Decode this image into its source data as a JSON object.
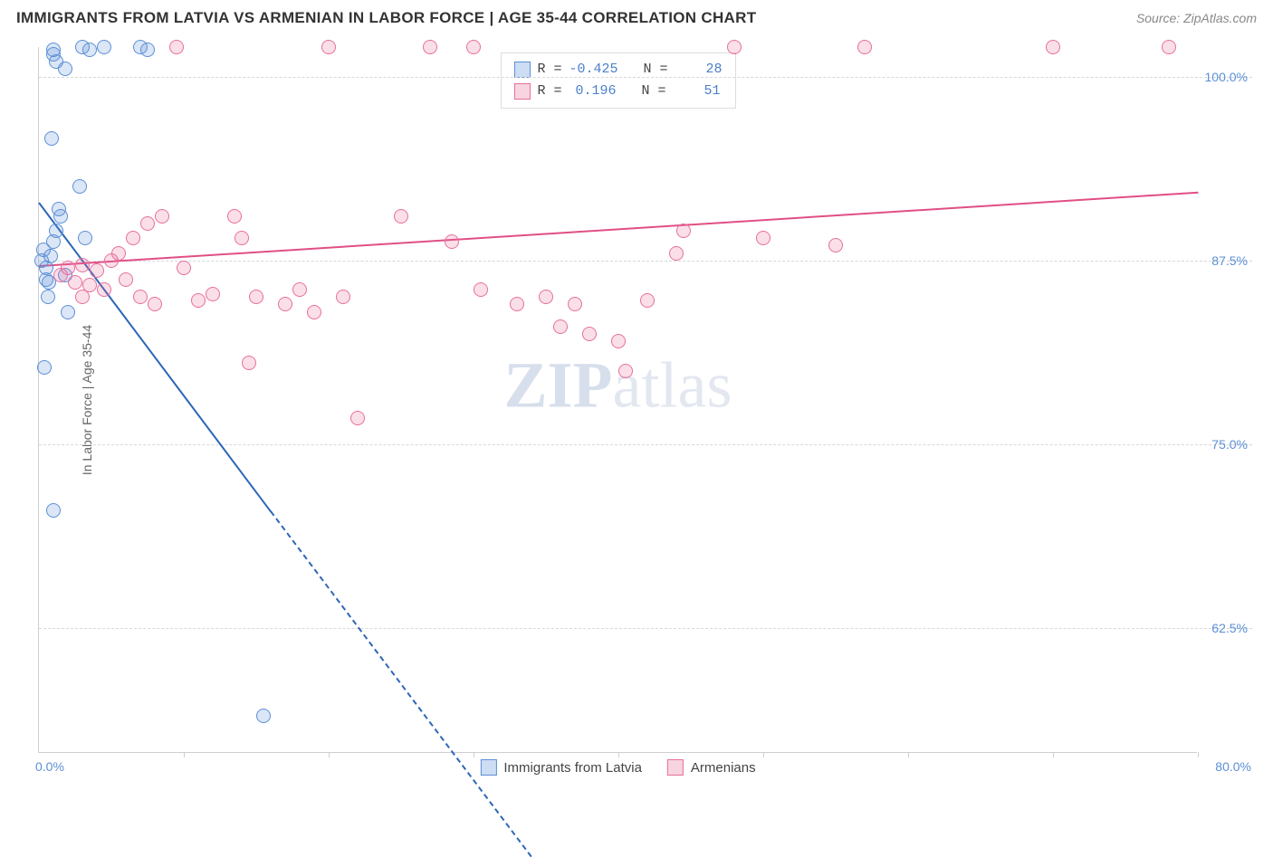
{
  "title": "IMMIGRANTS FROM LATVIA VS ARMENIAN IN LABOR FORCE | AGE 35-44 CORRELATION CHART",
  "source": "Source: ZipAtlas.com",
  "watermark": {
    "bold": "ZIP",
    "light": "atlas"
  },
  "chart": {
    "type": "scatter",
    "ylabel": "In Labor Force | Age 35-44",
    "xlim": [
      0,
      80
    ],
    "ylim": [
      54,
      102
    ],
    "ytick_values": [
      62.5,
      75.0,
      87.5,
      100.0
    ],
    "ytick_labels": [
      "62.5%",
      "75.0%",
      "87.5%",
      "100.0%"
    ],
    "xtick_values": [
      10,
      20,
      30,
      40,
      50,
      60,
      70,
      80
    ],
    "xlim_labels": {
      "min": "0.0%",
      "max": "80.0%"
    },
    "background_color": "#ffffff",
    "grid_color": "#d8d8d8",
    "axis_color": "#cfcfcf",
    "marker_radius": 8,
    "marker_stroke_width": 1.2,
    "marker_fill_opacity": 0.22,
    "series": [
      {
        "name": "Immigrants from Latvia",
        "color_stroke": "#5b8fd6",
        "color_fill": "rgba(91,143,214,0.22)",
        "R": -0.425,
        "N": 28,
        "trend": {
          "x1": 0,
          "y1": 91.5,
          "x2": 16,
          "y2": 70.5,
          "dash_extend_x": 34,
          "dash_extend_y": 47,
          "color": "#2d66b8",
          "width": 2
        },
        "points": [
          [
            0.3,
            88.2
          ],
          [
            0.5,
            87.0
          ],
          [
            0.7,
            86.0
          ],
          [
            0.8,
            87.8
          ],
          [
            1.0,
            88.8
          ],
          [
            1.2,
            89.5
          ],
          [
            1.5,
            90.5
          ],
          [
            0.6,
            85.0
          ],
          [
            1.8,
            86.5
          ],
          [
            2.0,
            84.0
          ],
          [
            0.4,
            80.2
          ],
          [
            1.0,
            70.5
          ],
          [
            3.0,
            102.0
          ],
          [
            3.5,
            101.8
          ],
          [
            4.5,
            102.0
          ],
          [
            7.0,
            102.0
          ],
          [
            7.5,
            101.8
          ],
          [
            1.2,
            101.0
          ],
          [
            1.0,
            101.8
          ],
          [
            1.8,
            100.5
          ],
          [
            0.9,
            95.8
          ],
          [
            2.8,
            92.5
          ],
          [
            1.4,
            91.0
          ],
          [
            3.2,
            89.0
          ],
          [
            0.5,
            86.2
          ],
          [
            0.2,
            87.5
          ],
          [
            1.0,
            101.5
          ],
          [
            15.5,
            56.5
          ]
        ]
      },
      {
        "name": "Armenians",
        "color_stroke": "#e76f9b",
        "color_fill": "rgba(231,111,155,0.22)",
        "R": 0.196,
        "N": 51,
        "trend": {
          "x1": 0,
          "y1": 87.2,
          "x2": 80,
          "y2": 92.2,
          "color": "#e04f85",
          "width": 2
        },
        "points": [
          [
            1.5,
            86.5
          ],
          [
            2.0,
            87.0
          ],
          [
            2.5,
            86.0
          ],
          [
            3.0,
            87.2
          ],
          [
            3.5,
            85.8
          ],
          [
            4.0,
            86.8
          ],
          [
            4.5,
            85.5
          ],
          [
            5.0,
            87.5
          ],
          [
            5.5,
            88.0
          ],
          [
            6.0,
            86.2
          ],
          [
            6.5,
            89.0
          ],
          [
            7.0,
            85.0
          ],
          [
            7.5,
            90.0
          ],
          [
            8.0,
            84.5
          ],
          [
            8.5,
            90.5
          ],
          [
            3.0,
            85.0
          ],
          [
            9.5,
            102.0
          ],
          [
            10.0,
            87.0
          ],
          [
            11.0,
            84.8
          ],
          [
            12.0,
            85.2
          ],
          [
            13.5,
            90.5
          ],
          [
            14.0,
            89.0
          ],
          [
            15.0,
            85.0
          ],
          [
            17.0,
            84.5
          ],
          [
            18.0,
            85.5
          ],
          [
            19.0,
            84.0
          ],
          [
            20.0,
            102.0
          ],
          [
            21.0,
            85.0
          ],
          [
            22.0,
            76.8
          ],
          [
            14.5,
            80.5
          ],
          [
            25.0,
            90.5
          ],
          [
            27.0,
            102.0
          ],
          [
            28.5,
            88.8
          ],
          [
            30.0,
            102.0
          ],
          [
            30.5,
            85.5
          ],
          [
            33.0,
            84.5
          ],
          [
            35.0,
            85.0
          ],
          [
            36.0,
            83.0
          ],
          [
            37.0,
            84.5
          ],
          [
            38.0,
            82.5
          ],
          [
            40.0,
            82.0
          ],
          [
            40.5,
            80.0
          ],
          [
            42.0,
            84.8
          ],
          [
            44.0,
            88.0
          ],
          [
            44.5,
            89.5
          ],
          [
            48.0,
            102.0
          ],
          [
            50.0,
            89.0
          ],
          [
            55.0,
            88.5
          ],
          [
            57.0,
            102.0
          ],
          [
            70.0,
            102.0
          ],
          [
            78.0,
            102.0
          ]
        ]
      }
    ],
    "legend_top": {
      "rows": [
        {
          "swatch_fill": "rgba(91,143,214,0.3)",
          "swatch_stroke": "#5b8fd6",
          "R_label": "R =",
          "R_val": "-0.425",
          "N_label": "N =",
          "N_val": "28"
        },
        {
          "swatch_fill": "rgba(231,111,155,0.3)",
          "swatch_stroke": "#e76f9b",
          "R_label": "R =",
          "R_val": "0.196",
          "N_label": "N =",
          "N_val": "51"
        }
      ]
    },
    "legend_bottom": [
      {
        "swatch_fill": "rgba(91,143,214,0.3)",
        "swatch_stroke": "#5b8fd6",
        "label": "Immigrants from Latvia"
      },
      {
        "swatch_fill": "rgba(231,111,155,0.3)",
        "swatch_stroke": "#e76f9b",
        "label": "Armenians"
      }
    ]
  }
}
